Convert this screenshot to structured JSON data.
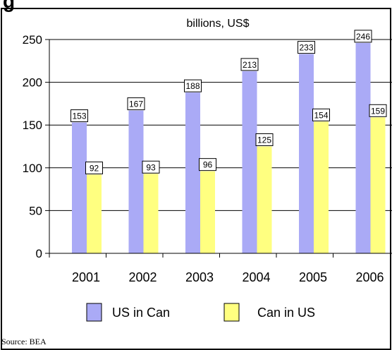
{
  "title_fragment": "g",
  "source": "Source: BEA",
  "colors": {
    "series1": "#aaaaf6",
    "series2": "#ffff80",
    "grid": "#000000",
    "frame": "#000000"
  },
  "chart_data": {
    "type": "bar",
    "title": "billions, US$",
    "categories": [
      "2001",
      "2002",
      "2003",
      "2004",
      "2005",
      "2006"
    ],
    "series": [
      {
        "name": "US in Can",
        "values": [
          153,
          167,
          188,
          213,
          233,
          246
        ]
      },
      {
        "name": "Can in US",
        "values": [
          92,
          93,
          96,
          125,
          154,
          159
        ]
      }
    ],
    "ylim": [
      0,
      250
    ],
    "yticks": [
      0,
      50,
      100,
      150,
      200,
      250
    ],
    "xlabel": "",
    "ylabel": "",
    "grid": true,
    "legend": "bottom",
    "data_labels": true
  }
}
